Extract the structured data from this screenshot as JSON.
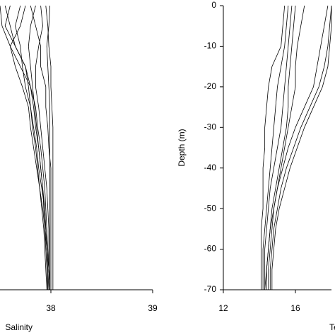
{
  "chart_data": [
    {
      "type": "line",
      "x_label": "Salinity",
      "xlim": [
        37,
        39
      ],
      "xticks": [
        38,
        39
      ],
      "ylim": [
        -70,
        0
      ],
      "y": [
        0,
        -5,
        -10,
        -15,
        -20,
        -25,
        -30,
        -35,
        -40,
        -45,
        -50,
        -55,
        -60,
        -65,
        -70
      ],
      "color": "#000000",
      "series": [
        {
          "values": [
            37.55,
            37.6,
            37.65,
            37.75,
            37.8,
            37.83,
            37.85,
            37.88,
            37.9,
            37.92,
            37.93,
            37.94,
            37.95,
            37.96,
            37.97
          ]
        },
        {
          "values": [
            37.7,
            37.65,
            37.7,
            37.72,
            37.75,
            37.8,
            37.83,
            37.86,
            37.88,
            37.91,
            37.94,
            37.95,
            37.96,
            37.97,
            37.98
          ]
        },
        {
          "values": [
            37.8,
            37.85,
            37.9,
            37.9,
            37.95,
            37.95,
            37.97,
            37.98,
            38.0,
            38.0,
            38.0,
            38.0,
            38.0,
            38.0,
            38.0
          ]
        },
        {
          "values": [
            37.99,
            37.98,
            37.96,
            37.97,
            37.98,
            37.99,
            37.99,
            37.99,
            37.99,
            37.99,
            37.99,
            37.99,
            37.99,
            37.99,
            37.99
          ]
        },
        {
          "values": [
            37.95,
            37.97,
            37.98,
            38.0,
            38.0,
            38.01,
            38.02,
            38.02,
            38.02,
            38.02,
            38.02,
            38.02,
            38.02,
            38.02,
            38.02
          ]
        },
        {
          "values": [
            37.6,
            37.55,
            37.65,
            37.75,
            37.78,
            37.8,
            37.82,
            37.85,
            37.87,
            37.89,
            37.91,
            37.93,
            37.94,
            37.95,
            37.96
          ]
        },
        {
          "values": [
            37.5,
            37.52,
            37.6,
            37.7,
            37.8,
            37.85,
            37.87,
            37.9,
            37.92,
            37.94,
            37.95,
            37.96,
            37.97,
            37.98,
            37.99
          ]
        },
        {
          "values": [
            37.85,
            37.8,
            37.78,
            37.8,
            37.82,
            37.84,
            37.86,
            37.88,
            37.9,
            37.92,
            37.94,
            37.95,
            37.96,
            37.97,
            37.97
          ]
        },
        {
          "values": [
            37.9,
            37.92,
            37.88,
            37.85,
            37.85,
            37.88,
            37.9,
            37.92,
            37.94,
            37.96,
            37.97,
            37.98,
            37.98,
            37.98,
            37.99
          ]
        },
        {
          "values": [
            37.75,
            37.7,
            37.6,
            37.65,
            37.72,
            37.78,
            37.8,
            37.83,
            37.86,
            37.89,
            37.92,
            37.94,
            37.96,
            37.98,
            37.99
          ]
        }
      ]
    },
    {
      "type": "line",
      "x_label": "Temperature",
      "y_label": "Depth (m)",
      "xlim": [
        12,
        18
      ],
      "xticks": [
        12,
        16
      ],
      "ylim": [
        -70,
        0
      ],
      "yticks": [
        0,
        -10,
        -20,
        -30,
        -40,
        -50,
        -60,
        -70
      ],
      "y": [
        0,
        -5,
        -10,
        -15,
        -20,
        -25,
        -30,
        -35,
        -40,
        -45,
        -50,
        -55,
        -60,
        -65,
        -70
      ],
      "color": "#000000",
      "series": [
        {
          "values": [
            15.4,
            15.3,
            15.2,
            14.7,
            14.5,
            14.4,
            14.3,
            14.3,
            14.2,
            14.2,
            14.2,
            14.1,
            14.1,
            14.1,
            14.1
          ]
        },
        {
          "values": [
            15.6,
            15.5,
            15.4,
            15.2,
            15.0,
            14.9,
            14.8,
            14.7,
            14.6,
            14.5,
            14.4,
            14.3,
            14.2,
            14.2,
            14.2
          ]
        },
        {
          "values": [
            16.5,
            16.3,
            16.1,
            16.0,
            16.0,
            15.8,
            15.6,
            15.4,
            15.2,
            15.0,
            14.8,
            14.6,
            14.5,
            14.4,
            14.3
          ]
        },
        {
          "values": [
            17.8,
            17.6,
            17.4,
            17.2,
            17.0,
            16.5,
            16.0,
            15.6,
            15.3,
            15.0,
            14.8,
            14.7,
            14.6,
            14.5,
            14.5
          ]
        },
        {
          "values": [
            18.0,
            18.0,
            17.9,
            17.8,
            17.5,
            17.0,
            16.5,
            16.1,
            15.7,
            15.4,
            15.1,
            14.9,
            14.8,
            14.7,
            14.7
          ]
        },
        {
          "values": [
            15.8,
            15.7,
            15.6,
            15.5,
            15.4,
            15.3,
            15.2,
            15.0,
            14.8,
            14.6,
            14.5,
            14.4,
            14.3,
            14.3,
            14.3
          ]
        },
        {
          "values": [
            18.0,
            17.9,
            17.8,
            17.6,
            17.3,
            16.8,
            16.3,
            15.9,
            15.5,
            15.2,
            15.0,
            14.8,
            14.7,
            14.6,
            14.6
          ]
        },
        {
          "values": [
            16.0,
            15.9,
            15.8,
            15.7,
            15.6,
            15.6,
            15.5,
            15.3,
            15.1,
            14.9,
            14.7,
            14.6,
            14.5,
            14.4,
            14.4
          ]
        }
      ]
    }
  ]
}
